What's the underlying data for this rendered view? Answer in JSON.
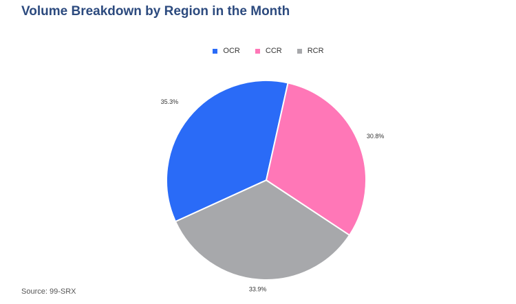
{
  "title": "Volume Breakdown by Region in the Month",
  "source": "Source: 99-SRX",
  "chart_data": {
    "type": "pie",
    "title": "Volume Breakdown by Region in the Month",
    "legend_position": "top",
    "slices": [
      {
        "label": "OCR",
        "value": 35.3,
        "display": "35.3%",
        "color": "#2a6bf7"
      },
      {
        "label": "CCR",
        "value": 30.8,
        "display": "30.8%",
        "color": "#ff77b7"
      },
      {
        "label": "RCR",
        "value": 33.9,
        "display": "33.9%",
        "color": "#a7a8ab"
      }
    ]
  }
}
